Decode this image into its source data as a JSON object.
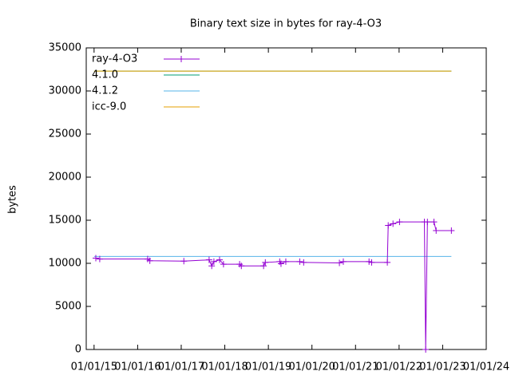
{
  "chart_data": {
    "type": "line",
    "title": "Binary text size in bytes for ray-4-O3",
    "y_label": "bytes",
    "xlim": [
      2014.82,
      2024
    ],
    "xticks": [
      {
        "value": 2015,
        "label": "01/01/15"
      },
      {
        "value": 2016,
        "label": "01/01/16"
      },
      {
        "value": 2017,
        "label": "01/01/17"
      },
      {
        "value": 2018,
        "label": "01/01/18"
      },
      {
        "value": 2019,
        "label": "01/01/19"
      },
      {
        "value": 2020,
        "label": "01/01/20"
      },
      {
        "value": 2021,
        "label": "01/01/21"
      },
      {
        "value": 2022,
        "label": "01/01/22"
      },
      {
        "value": 2023,
        "label": "01/01/23"
      },
      {
        "value": 2024,
        "label": "01/01/24"
      }
    ],
    "ylim": [
      0,
      35000
    ],
    "yticks": [
      0,
      5000,
      10000,
      15000,
      20000,
      25000,
      30000,
      35000
    ],
    "legend": "top-left",
    "series": [
      {
        "name": "ray-4-O3",
        "color": "#9400d3",
        "markers": true,
        "x": [
          2015.04,
          2015.13,
          2016.23,
          2016.28,
          2017.06,
          2017.64,
          2017.7,
          2017.75,
          2017.88,
          2017.97,
          2018.34,
          2018.38,
          2018.89,
          2018.93,
          2019.26,
          2019.29,
          2019.4,
          2019.72,
          2019.81,
          2020.63,
          2020.72,
          2021.31,
          2021.37,
          2021.73,
          2021.75,
          2021.86,
          2022.01,
          2022.58,
          2022.61,
          2022.65,
          2022.8,
          2022.85,
          2023.2
        ],
        "values": [
          10600,
          10500,
          10500,
          10300,
          10250,
          10400,
          9700,
          10200,
          10400,
          9900,
          9900,
          9700,
          9700,
          10100,
          10200,
          9950,
          10200,
          10200,
          10100,
          10050,
          10200,
          10200,
          10100,
          10100,
          14400,
          14600,
          14800,
          14800,
          0,
          14800,
          14800,
          13800,
          13800
        ]
      },
      {
        "name": "4.1.0",
        "color": "#009e73",
        "markers": false,
        "x": [
          2015.0,
          2023.2
        ],
        "values": [
          32300,
          32300
        ]
      },
      {
        "name": "4.1.2",
        "color": "#56b4e9",
        "markers": false,
        "x": [
          2015.0,
          2023.2
        ],
        "values": [
          10800,
          10800
        ]
      },
      {
        "name": "icc-9.0",
        "color": "#e69f00",
        "markers": false,
        "x": [
          2015.0,
          2023.2
        ],
        "values": [
          32300,
          32300
        ]
      }
    ]
  }
}
